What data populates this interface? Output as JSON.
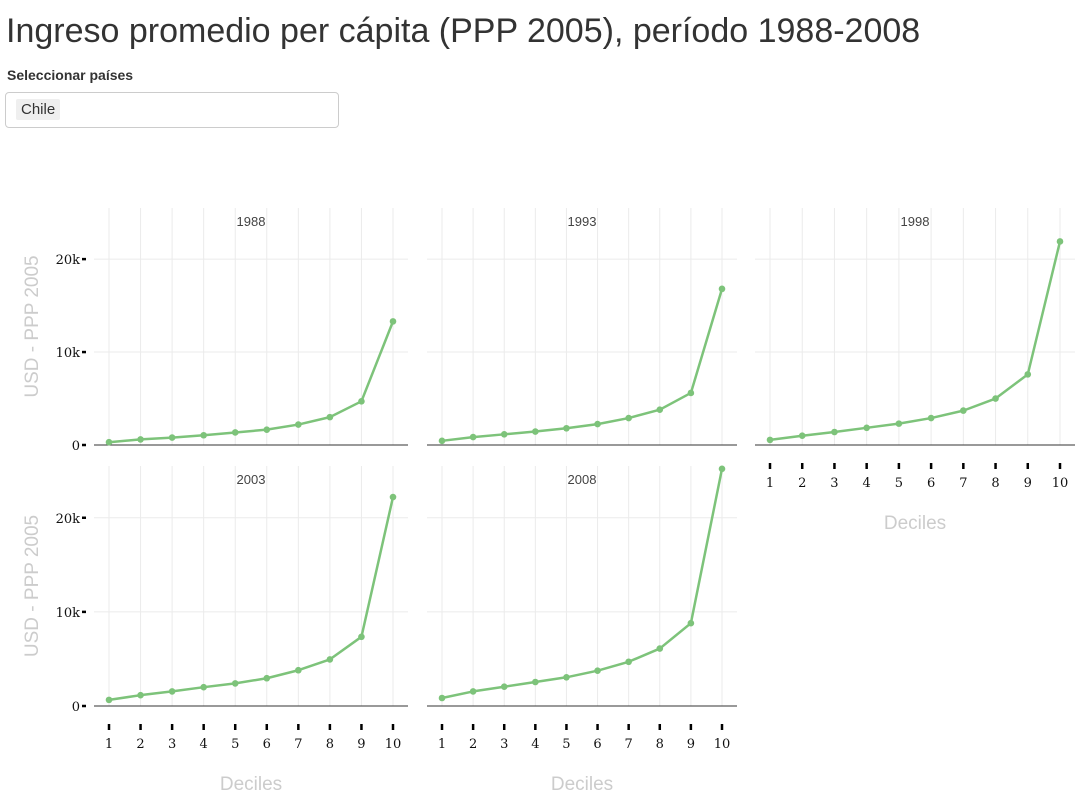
{
  "title": "Ingreso promedio per cápita (PPP 2005), período 1988-2008",
  "selector": {
    "label": "Seleccionar países",
    "selected": [
      "Chile"
    ]
  },
  "colors": {
    "line": "#7dc37a",
    "grid": "#ebebeb",
    "axis": "#333333",
    "axis_title": "#cccccc"
  },
  "chart_data": {
    "type": "line",
    "layout": "facet-wrap",
    "title": "Ingreso promedio per cápita (PPP 2005), período 1988-2008",
    "xlabel": "Deciles",
    "ylabel": "USD - PPP 2005",
    "x": [
      1,
      2,
      3,
      4,
      5,
      6,
      7,
      8,
      9,
      10
    ],
    "x_ticks": [
      "1",
      "2",
      "3",
      "4",
      "5",
      "6",
      "7",
      "8",
      "9",
      "10"
    ],
    "y_ticks": [
      {
        "value": 0,
        "label": "0"
      },
      {
        "value": 10000,
        "label": "10k"
      },
      {
        "value": 20000,
        "label": "20k"
      }
    ],
    "ylim": [
      0,
      25500
    ],
    "panels": [
      {
        "name": "1988",
        "values": [
          300,
          600,
          800,
          1050,
          1350,
          1650,
          2200,
          3000,
          4700,
          13300
        ]
      },
      {
        "name": "1993",
        "values": [
          450,
          850,
          1150,
          1450,
          1800,
          2250,
          2900,
          3800,
          5600,
          16800
        ]
      },
      {
        "name": "1998",
        "values": [
          550,
          1000,
          1400,
          1850,
          2300,
          2900,
          3700,
          5000,
          7600,
          21900
        ]
      },
      {
        "name": "2003",
        "values": [
          650,
          1150,
          1550,
          2000,
          2400,
          2950,
          3800,
          4950,
          7350,
          22200
        ]
      },
      {
        "name": "2008",
        "values": [
          850,
          1550,
          2050,
          2550,
          3050,
          3750,
          4700,
          6100,
          8800,
          25200
        ]
      }
    ]
  }
}
